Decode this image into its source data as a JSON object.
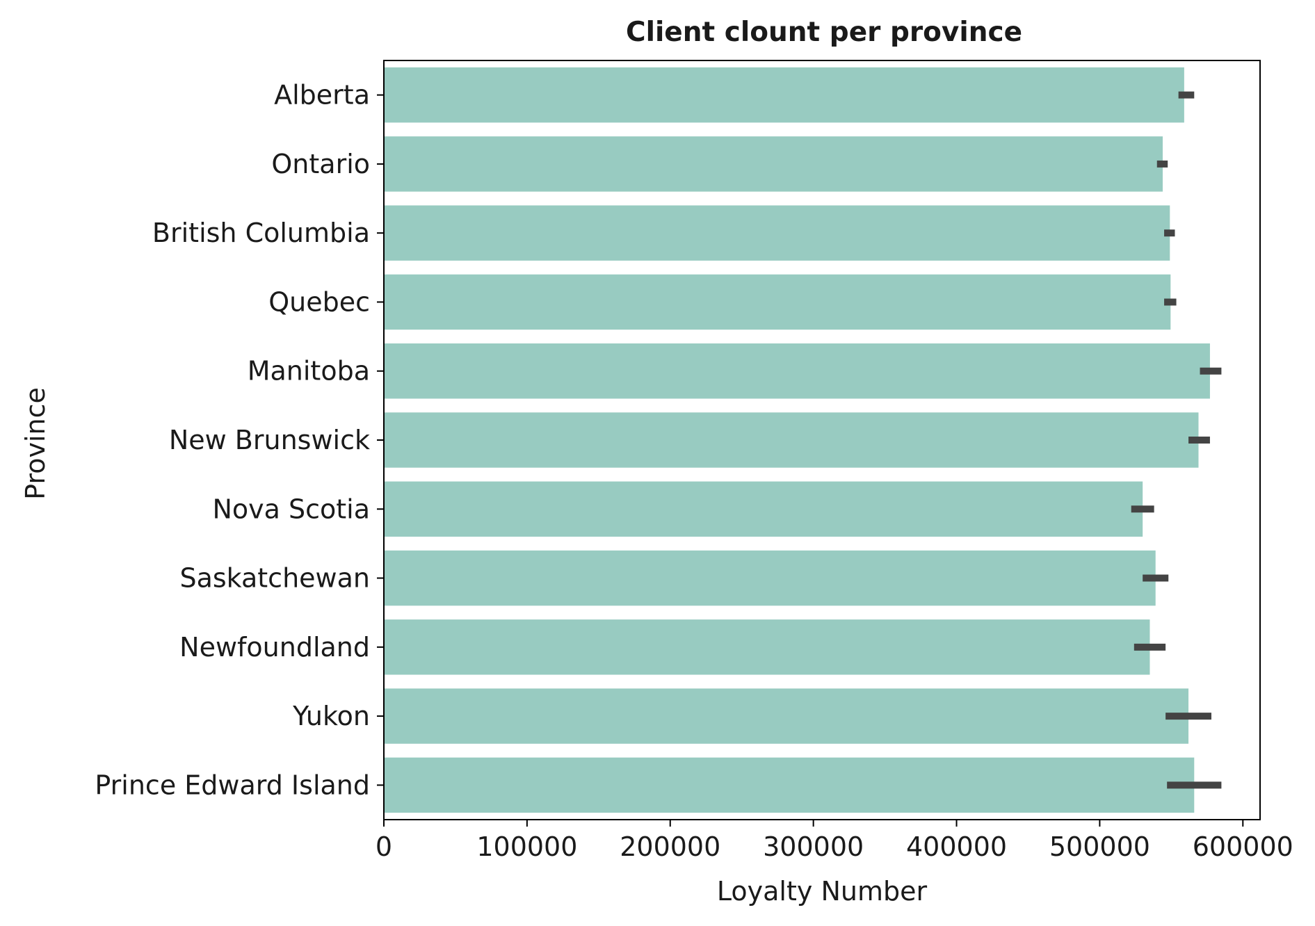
{
  "chart_data": {
    "type": "bar",
    "orientation": "horizontal",
    "title": "Client clount per province",
    "xlabel": "Loyalty Number",
    "ylabel": "Province",
    "xlim": [
      0,
      612000
    ],
    "xticks": [
      0,
      100000,
      200000,
      300000,
      400000,
      500000,
      600000
    ],
    "xtick_labels": [
      "0",
      "100000",
      "200000",
      "300000",
      "400000",
      "500000",
      "600000"
    ],
    "categories": [
      "Alberta",
      "Ontario",
      "British Columbia",
      "Quebec",
      "Manitoba",
      "New Brunswick",
      "Nova Scotia",
      "Saskatchewan",
      "Newfoundland",
      "Yukon",
      "Prince Edward Island"
    ],
    "values": [
      559000,
      544000,
      549000,
      549500,
      577000,
      569000,
      530000,
      539000,
      535000,
      562000,
      566000
    ],
    "error_bars": [
      [
        555000,
        566000
      ],
      [
        540000,
        547500
      ],
      [
        545000,
        552500
      ],
      [
        545000,
        553500
      ],
      [
        570000,
        585000
      ],
      [
        562000,
        577000
      ],
      [
        522000,
        538000
      ],
      [
        530000,
        548000
      ],
      [
        524000,
        546000
      ],
      [
        546000,
        578000
      ],
      [
        547000,
        585000
      ]
    ],
    "bar_color": "#98cbc1",
    "error_color": "#444444",
    "grid": false,
    "legend": "none"
  }
}
